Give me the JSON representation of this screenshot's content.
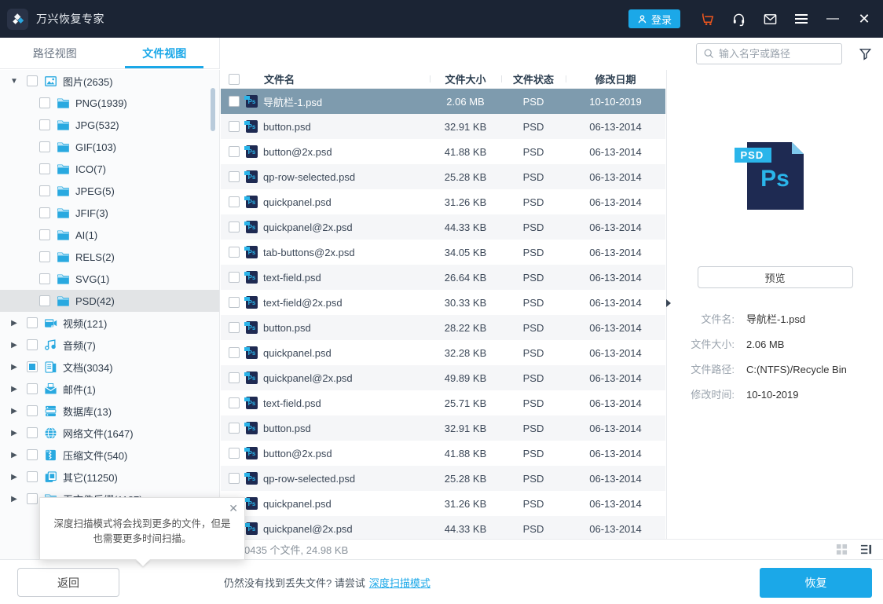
{
  "titlebar": {
    "app_title": "万兴恢复专家",
    "login_label": "登录"
  },
  "tabs": {
    "path_view": "路径视图",
    "file_view": "文件视图"
  },
  "search": {
    "placeholder": "输入名字或路径"
  },
  "sidebar": {
    "items": [
      {
        "text": "图片(2635)",
        "icon": "image",
        "level": 0,
        "expander": "down",
        "checked": "unchecked",
        "highlight": false
      },
      {
        "text": "PNG(1939)",
        "icon": "folder",
        "level": 1,
        "expander": "none",
        "checked": "unchecked",
        "highlight": false
      },
      {
        "text": "JPG(532)",
        "icon": "folder",
        "level": 1,
        "expander": "none",
        "checked": "unchecked",
        "highlight": false
      },
      {
        "text": "GIF(103)",
        "icon": "folder",
        "level": 1,
        "expander": "none",
        "checked": "unchecked",
        "highlight": false
      },
      {
        "text": "ICO(7)",
        "icon": "folder",
        "level": 1,
        "expander": "none",
        "checked": "unchecked",
        "highlight": false
      },
      {
        "text": "JPEG(5)",
        "icon": "folder",
        "level": 1,
        "expander": "none",
        "checked": "unchecked",
        "highlight": false
      },
      {
        "text": "JFIF(3)",
        "icon": "folder",
        "level": 1,
        "expander": "none",
        "checked": "unchecked",
        "highlight": false
      },
      {
        "text": "AI(1)",
        "icon": "folder",
        "level": 1,
        "expander": "none",
        "checked": "unchecked",
        "highlight": false
      },
      {
        "text": "RELS(2)",
        "icon": "folder",
        "level": 1,
        "expander": "none",
        "checked": "unchecked",
        "highlight": false
      },
      {
        "text": "SVG(1)",
        "icon": "folder",
        "level": 1,
        "expander": "none",
        "checked": "unchecked",
        "highlight": false
      },
      {
        "text": "PSD(42)",
        "icon": "folder",
        "level": 1,
        "expander": "none",
        "checked": "unchecked",
        "highlight": true
      },
      {
        "text": "视频(121)",
        "icon": "video",
        "level": 0,
        "expander": "right",
        "checked": "unchecked",
        "highlight": false
      },
      {
        "text": "音频(7)",
        "icon": "audio",
        "level": 0,
        "expander": "right",
        "checked": "unchecked",
        "highlight": false
      },
      {
        "text": "文档(3034)",
        "icon": "doc",
        "level": 0,
        "expander": "right",
        "checked": "partial",
        "highlight": false
      },
      {
        "text": "邮件(1)",
        "icon": "mail",
        "level": 0,
        "expander": "right",
        "checked": "unchecked",
        "highlight": false
      },
      {
        "text": "数据库(13)",
        "icon": "db",
        "level": 0,
        "expander": "right",
        "checked": "unchecked",
        "highlight": false
      },
      {
        "text": "网络文件(1647)",
        "icon": "web",
        "level": 0,
        "expander": "right",
        "checked": "unchecked",
        "highlight": false
      },
      {
        "text": "压缩文件(540)",
        "icon": "zip",
        "level": 0,
        "expander": "right",
        "checked": "unchecked",
        "highlight": false
      },
      {
        "text": "其它(11250)",
        "icon": "other",
        "level": 0,
        "expander": "right",
        "checked": "unchecked",
        "highlight": false
      },
      {
        "text": "无文件后缀(1187)",
        "icon": "folder",
        "level": 0,
        "expander": "right",
        "checked": "unchecked",
        "highlight": false
      }
    ]
  },
  "table": {
    "headers": [
      "文件名",
      "文件大小",
      "文件状态",
      "修改日期"
    ],
    "rows": [
      {
        "name": "导航栏-1.psd",
        "size": "2.06  MB",
        "status": "PSD",
        "date": "10-10-2019",
        "selected": true
      },
      {
        "name": "button.psd",
        "size": "32.91  KB",
        "status": "PSD",
        "date": "06-13-2014",
        "selected": false
      },
      {
        "name": "button@2x.psd",
        "size": "41.88  KB",
        "status": "PSD",
        "date": "06-13-2014",
        "selected": false
      },
      {
        "name": "qp-row-selected.psd",
        "size": "25.28  KB",
        "status": "PSD",
        "date": "06-13-2014",
        "selected": false
      },
      {
        "name": "quickpanel.psd",
        "size": "31.26  KB",
        "status": "PSD",
        "date": "06-13-2014",
        "selected": false
      },
      {
        "name": "quickpanel@2x.psd",
        "size": "44.33  KB",
        "status": "PSD",
        "date": "06-13-2014",
        "selected": false
      },
      {
        "name": "tab-buttons@2x.psd",
        "size": "34.05  KB",
        "status": "PSD",
        "date": "06-13-2014",
        "selected": false
      },
      {
        "name": "text-field.psd",
        "size": "26.64  KB",
        "status": "PSD",
        "date": "06-13-2014",
        "selected": false
      },
      {
        "name": "text-field@2x.psd",
        "size": "30.33  KB",
        "status": "PSD",
        "date": "06-13-2014",
        "selected": false
      },
      {
        "name": "button.psd",
        "size": "28.22  KB",
        "status": "PSD",
        "date": "06-13-2014",
        "selected": false
      },
      {
        "name": "quickpanel.psd",
        "size": "32.28  KB",
        "status": "PSD",
        "date": "06-13-2014",
        "selected": false
      },
      {
        "name": "quickpanel@2x.psd",
        "size": "49.89  KB",
        "status": "PSD",
        "date": "06-13-2014",
        "selected": false
      },
      {
        "name": "text-field.psd",
        "size": "25.71  KB",
        "status": "PSD",
        "date": "06-13-2014",
        "selected": false
      },
      {
        "name": "button.psd",
        "size": "32.91  KB",
        "status": "PSD",
        "date": "06-13-2014",
        "selected": false
      },
      {
        "name": "button@2x.psd",
        "size": "41.88  KB",
        "status": "PSD",
        "date": "06-13-2014",
        "selected": false
      },
      {
        "name": "qp-row-selected.psd",
        "size": "25.28  KB",
        "status": "PSD",
        "date": "06-13-2014",
        "selected": false
      },
      {
        "name": "quickpanel.psd",
        "size": "31.26  KB",
        "status": "PSD",
        "date": "06-13-2014",
        "selected": false
      },
      {
        "name": "quickpanel@2x.psd",
        "size": "44.33  KB",
        "status": "PSD",
        "date": "06-13-2014",
        "selected": false
      }
    ]
  },
  "preview": {
    "badge": "PSD",
    "ps_label": "Ps",
    "preview_button": "预览",
    "fields": [
      {
        "label": "文件名:",
        "value": "导航栏-1.psd"
      },
      {
        "label": "文件大小:",
        "value": "2.06  MB"
      },
      {
        "label": "文件路径:",
        "value": "C:(NTFS)/Recycle Bin"
      },
      {
        "label": "修改时间:",
        "value": "10-10-2019"
      }
    ]
  },
  "statusbar": {
    "summary": "0435 个文件, 24.98  KB"
  },
  "footer": {
    "back": "返回",
    "hint": "仍然没有找到丢失文件? 请尝试",
    "deep_scan_link": "深度扫描模式",
    "recover": "恢复"
  },
  "tooltip": {
    "line1": "深度扫描模式将会找到更多的文件，但是",
    "line2": "也需要更多时间扫描。"
  },
  "colors": {
    "accent": "#1BA8E8",
    "titlebar_bg": "#1B2434",
    "selected_row": "#7E9BAE",
    "cart_orange": "#F0561D",
    "psd_navy": "#1E2A52",
    "psd_cyan": "#2AB5EA"
  }
}
